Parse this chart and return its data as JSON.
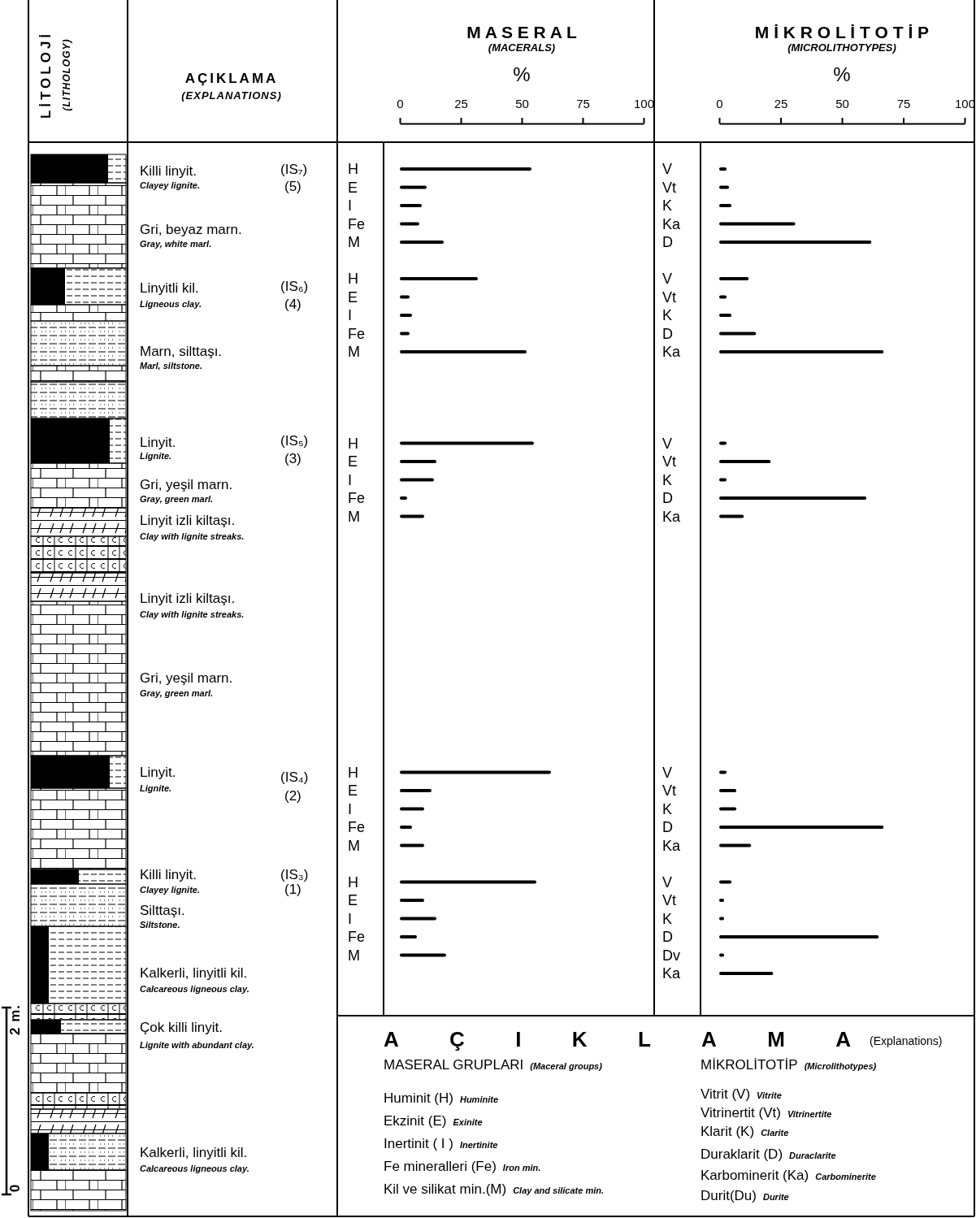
{
  "chart_data": [
    {
      "type": "bar",
      "orientation": "horizontal",
      "title": "M A S E R A L",
      "subtitle": "(MACERALS)",
      "xlabel": "%",
      "xlim": [
        0,
        100
      ],
      "xticks": [
        0,
        25,
        50,
        75,
        100
      ],
      "color": "#000000",
      "categories": [
        "H",
        "E",
        "I",
        "Fe",
        "M",
        null,
        "H",
        "E",
        "I",
        "Fe",
        "M",
        null,
        null,
        null,
        null,
        "H",
        "E",
        "I",
        "Fe",
        "M",
        null,
        null,
        null,
        null,
        null,
        null,
        null,
        null,
        null,
        null,
        null,
        null,
        null,
        "H",
        "E",
        "I",
        "Fe",
        "M",
        null,
        "H",
        "E",
        "I",
        "Fe",
        "M",
        null
      ],
      "values": [
        54,
        11,
        9,
        8,
        18,
        null,
        32,
        4,
        5,
        4,
        52,
        null,
        null,
        null,
        null,
        55,
        15,
        14,
        3,
        10,
        null,
        null,
        null,
        null,
        null,
        null,
        null,
        null,
        null,
        null,
        null,
        null,
        null,
        62,
        13,
        10,
        5,
        10,
        null,
        56,
        10,
        15,
        7,
        19,
        null
      ]
    },
    {
      "type": "bar",
      "orientation": "horizontal",
      "title": "M İ K R O L İ T O T İ P",
      "subtitle": "(MICROLITHOTYPES)",
      "xlabel": "%",
      "xlim": [
        0,
        100
      ],
      "xticks": [
        0,
        25,
        50,
        75,
        100
      ],
      "color": "#000000",
      "categories": [
        "V",
        "Vt",
        "K",
        "Ka",
        "D",
        null,
        "V",
        "Vt",
        "K",
        "D",
        "Ka",
        null,
        null,
        null,
        null,
        "V",
        "Vt",
        "K",
        "D",
        "Ka",
        null,
        null,
        null,
        null,
        null,
        null,
        null,
        null,
        null,
        null,
        null,
        null,
        null,
        "V",
        "Vt",
        "K",
        "D",
        "Ka",
        null,
        "V",
        "Vt",
        "K",
        "D",
        "Dv",
        "Ka"
      ],
      "values": [
        3,
        4,
        5,
        31,
        62,
        null,
        12,
        3,
        5,
        15,
        67,
        null,
        null,
        null,
        null,
        3,
        21,
        3,
        60,
        10,
        null,
        null,
        null,
        null,
        null,
        null,
        null,
        null,
        null,
        null,
        null,
        null,
        null,
        3,
        7,
        7,
        67,
        13,
        null,
        5,
        2,
        2,
        65,
        2,
        22
      ]
    },
    {
      "type": "other",
      "annotations": [
        "LİTOLOJİ",
        "(LITHOLOGY)",
        "AÇIKLAMA",
        "(EXPLANATIONS)",
        "Killi linyit.",
        "Clayey lignite.",
        "(IS₇)",
        "(5)",
        "Gri, beyaz marn.",
        "Gray, white marl.",
        "Linyitli kil.",
        "Ligneous clay.",
        "(IS₆)",
        "(4)",
        "Marn, silttaşı.",
        "Marl, siltstone.",
        "Linyit.",
        "Lignite.",
        "(IS₅)",
        "(3)",
        "Gri, yeşil marn.",
        "Gray, green marl.",
        "Linyit izli kiltaşı.",
        "Clay with lignite streaks.",
        "Linyit izli kiltaşı.",
        "Clay with lignite streaks.",
        "Gri, yeşil marn.",
        "Gray, green marl.",
        "Linyit.",
        "Lignite.",
        "(IS₄)",
        "(2)",
        "Killi linyit.",
        "Clayey lignite.",
        "(IS₃)",
        "(1)",
        "Silttaşı.",
        "Siltstone.",
        "Kalkerli, linyitli kil.",
        "Calcareous ligneous clay.",
        "Çok killi linyit.",
        "Lignite with abundant clay.",
        "Kalkerli, linyitli kil.",
        "Calcareous ligneous clay.",
        "2 m.",
        "0",
        "AÇIKLAMA",
        "(Explanations)",
        "MASERAL GRUPLARI",
        "(Maceral groups)",
        "MİKROLİTOTİP",
        "(Microlithotypes)",
        "Huminit (H)",
        "Huminite",
        "Ekzinit (E)",
        "Exinite",
        "Inertinit ( I )",
        "Inertinite",
        "Fe mineralleri (Fe)",
        "Iron min.",
        "Kil ve silikat min.(M)",
        "Clay and silicate min.",
        "Vitrit (V)",
        "Vitrite",
        "Vitrinertit (Vt)",
        "Vitrinertite",
        "Klarit (K)",
        "Clarite",
        "Duraklarit (D)",
        "Duraclarite",
        "Karbominerit (Ka)",
        "Carbominerite",
        "Durit(Du)",
        "Durite"
      ]
    }
  ]
}
